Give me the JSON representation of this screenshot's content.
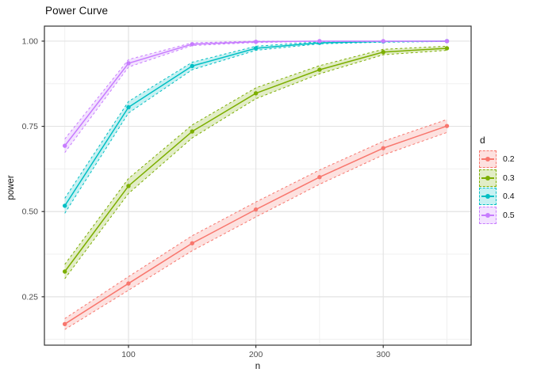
{
  "chart": {
    "title": "Power Curve"
  },
  "axes": {
    "x_label": "n",
    "y_label": "power",
    "x_ticks": [
      "100",
      "200",
      "300"
    ],
    "y_ticks": [
      "0.25",
      "0.50",
      "0.75",
      "1.00"
    ]
  },
  "legend": {
    "title": "d",
    "items": [
      {
        "label": "0.2",
        "color": "#F8766D"
      },
      {
        "label": "0.3",
        "color": "#7CAE00"
      },
      {
        "label": "0.4",
        "color": "#00BFC4"
      },
      {
        "label": "0.5",
        "color": "#C77CFF"
      }
    ]
  },
  "chart_data": {
    "type": "line",
    "title": "Power Curve",
    "xlabel": "n",
    "ylabel": "power",
    "legend_title": "d",
    "legend_position": "right",
    "grid": true,
    "x": [
      50,
      100,
      150,
      200,
      250,
      300,
      350
    ],
    "x_range": [
      34,
      369
    ],
    "y_range": [
      0.108,
      1.044
    ],
    "x_major": [
      100,
      200,
      300
    ],
    "x_minor": [
      50,
      150,
      250,
      350
    ],
    "y_major": [
      0.25,
      0.5,
      0.75,
      1.0
    ],
    "y_minor": [
      0.125,
      0.375,
      0.625,
      0.875
    ],
    "series": [
      {
        "name": "0.2",
        "color": "#F8766D",
        "values": [
          0.17,
          0.289,
          0.407,
          0.506,
          0.601,
          0.686,
          0.751
        ],
        "lower": [
          0.154,
          0.269,
          0.385,
          0.484,
          0.58,
          0.666,
          0.732
        ],
        "upper": [
          0.186,
          0.309,
          0.429,
          0.528,
          0.622,
          0.706,
          0.77
        ]
      },
      {
        "name": "0.3",
        "color": "#7CAE00",
        "values": [
          0.324,
          0.575,
          0.735,
          0.847,
          0.916,
          0.968,
          0.979
        ],
        "lower": [
          0.303,
          0.553,
          0.716,
          0.831,
          0.904,
          0.96,
          0.973
        ],
        "upper": [
          0.345,
          0.597,
          0.754,
          0.863,
          0.928,
          0.976,
          0.985
        ]
      },
      {
        "name": "0.4",
        "color": "#00BFC4",
        "values": [
          0.517,
          0.806,
          0.927,
          0.979,
          0.995,
          0.999,
          1.0
        ],
        "lower": [
          0.495,
          0.789,
          0.916,
          0.973,
          0.992,
          0.997,
          0.999
        ],
        "upper": [
          0.539,
          0.823,
          0.938,
          0.985,
          0.998,
          1.0,
          1.0
        ]
      },
      {
        "name": "0.5",
        "color": "#C77CFF",
        "values": [
          0.693,
          0.935,
          0.991,
          0.998,
          1.0,
          1.0,
          1.0
        ],
        "lower": [
          0.673,
          0.924,
          0.987,
          0.996,
          0.999,
          0.999,
          0.999
        ],
        "upper": [
          0.713,
          0.946,
          0.995,
          1.0,
          1.0,
          1.0,
          1.0
        ]
      }
    ],
    "panel": {
      "background": "#FFFFFF",
      "border_color": "#333333",
      "grid_major_color": "#E3E3E3",
      "grid_minor_color": "#F0F0F0",
      "tick_color": "#333333",
      "tick_label_color": "#4D4D4D",
      "ribbon_opacity": 0.22
    }
  }
}
